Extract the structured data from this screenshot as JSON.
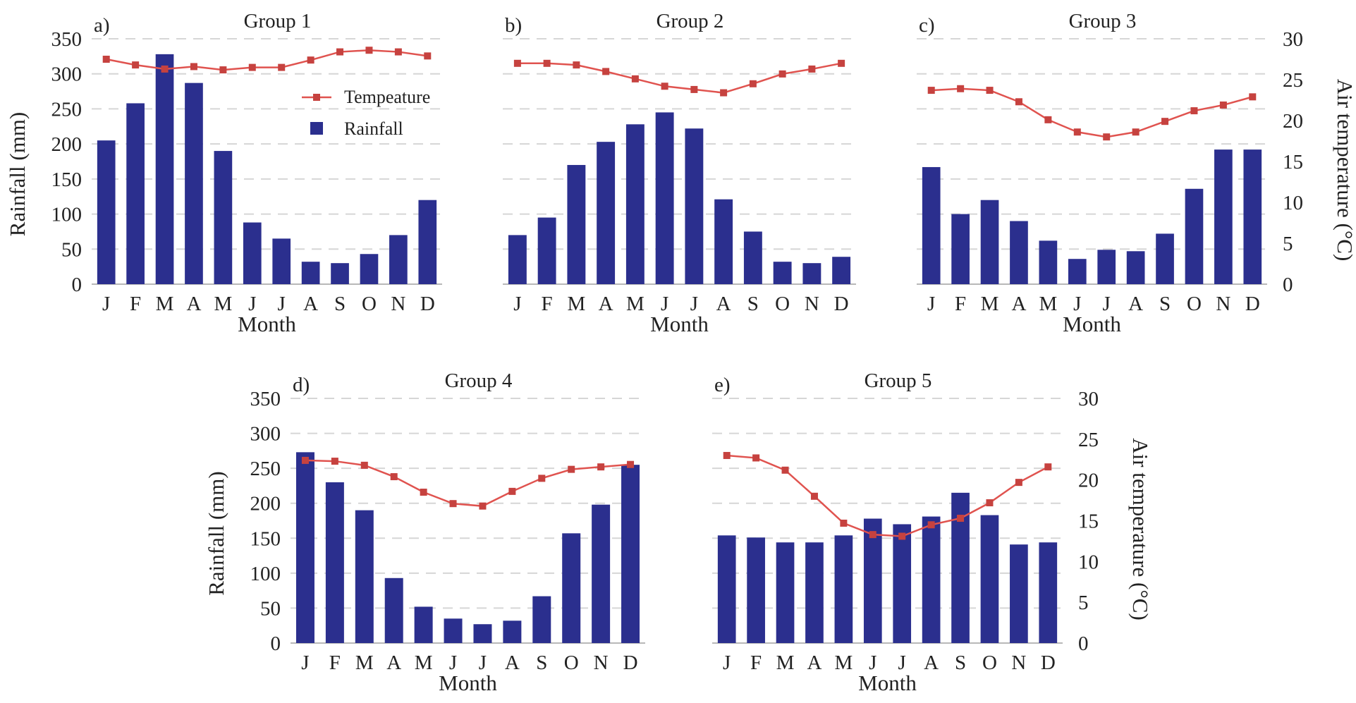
{
  "figure": {
    "legend": {
      "temperature_label": "Tempeature",
      "rainfall_label": "Rainfall"
    }
  },
  "colors": {
    "rainfall_bar": "#2b2f8e",
    "temperature_line": "#e0534f",
    "temperature_marker": "#c6423f",
    "grid": "#d6d6d6"
  },
  "chart_data": [
    {
      "type": "bar",
      "panel_label": "a)",
      "title": "Group 1",
      "categories": [
        "J",
        "F",
        "M",
        "A",
        "M",
        "J",
        "J",
        "A",
        "S",
        "O",
        "N",
        "D"
      ],
      "xlabel": "Month",
      "ylabel": "Rainfall (mm)",
      "ylim": [
        0,
        350
      ],
      "yticks": [
        "0",
        "50",
        "100",
        "150",
        "200",
        "250",
        "300",
        "350"
      ],
      "y2label": "",
      "y2lim": [
        0,
        30
      ],
      "y2ticks": [],
      "grid": true,
      "legend_position": "top-right",
      "series": [
        {
          "name": "Rainfall",
          "type": "bar",
          "axis": "left",
          "values": [
            205,
            258,
            328,
            287,
            190,
            88,
            65,
            32,
            30,
            43,
            70,
            120
          ]
        },
        {
          "name": "Tempeature",
          "type": "line",
          "axis": "right",
          "values": [
            27.5,
            26.8,
            26.3,
            26.6,
            26.2,
            26.5,
            26.5,
            27.4,
            28.4,
            28.6,
            28.4,
            27.9
          ]
        }
      ]
    },
    {
      "type": "bar",
      "panel_label": "b)",
      "title": "Group 2",
      "categories": [
        "J",
        "F",
        "M",
        "A",
        "M",
        "J",
        "J",
        "A",
        "S",
        "O",
        "N",
        "D"
      ],
      "xlabel": "Month",
      "ylabel": "",
      "ylim": [
        0,
        350
      ],
      "yticks": [],
      "y2label": "",
      "y2lim": [
        0,
        30
      ],
      "y2ticks": [],
      "grid": true,
      "series": [
        {
          "name": "Rainfall",
          "type": "bar",
          "axis": "left",
          "values": [
            70,
            95,
            170,
            203,
            228,
            245,
            222,
            121,
            75,
            32,
            30,
            39
          ]
        },
        {
          "name": "Tempeature",
          "type": "line",
          "axis": "right",
          "values": [
            27.0,
            27.0,
            26.8,
            26.0,
            25.1,
            24.2,
            23.8,
            23.4,
            24.5,
            25.7,
            26.3,
            27.0
          ]
        }
      ]
    },
    {
      "type": "bar",
      "panel_label": "c)",
      "title": "Group 3",
      "categories": [
        "J",
        "F",
        "M",
        "A",
        "M",
        "J",
        "J",
        "A",
        "S",
        "O",
        "N",
        "D"
      ],
      "xlabel": "Month",
      "ylabel": "",
      "ylim": [
        0,
        350
      ],
      "yticks": [],
      "y2label": "Air temperature (°C)",
      "y2lim": [
        0,
        30
      ],
      "y2ticks": [
        "0",
        "5",
        "10",
        "15",
        "20",
        "25",
        "30"
      ],
      "grid": true,
      "series": [
        {
          "name": "Rainfall",
          "type": "bar",
          "axis": "left",
          "values": [
            167,
            100,
            120,
            90,
            62,
            36,
            49,
            47,
            72,
            136,
            192,
            192
          ]
        },
        {
          "name": "Tempeature",
          "type": "line",
          "axis": "right",
          "values": [
            23.7,
            23.9,
            23.7,
            22.3,
            20.1,
            18.6,
            18.0,
            18.6,
            19.9,
            21.2,
            21.9,
            22.9
          ]
        }
      ]
    },
    {
      "type": "bar",
      "panel_label": "d)",
      "title": "Group 4",
      "categories": [
        "J",
        "F",
        "M",
        "A",
        "M",
        "J",
        "J",
        "A",
        "S",
        "O",
        "N",
        "D"
      ],
      "xlabel": "Month",
      "ylabel": "Rainfall (mm)",
      "ylim": [
        0,
        350
      ],
      "yticks": [
        "0",
        "50",
        "100",
        "150",
        "200",
        "250",
        "300",
        "350"
      ],
      "y2label": "",
      "y2lim": [
        0,
        30
      ],
      "y2ticks": [],
      "grid": true,
      "series": [
        {
          "name": "Rainfall",
          "type": "bar",
          "axis": "left",
          "values": [
            273,
            230,
            190,
            93,
            52,
            35,
            27,
            32,
            67,
            157,
            198,
            255
          ]
        },
        {
          "name": "Tempeature",
          "type": "line",
          "axis": "right",
          "values": [
            22.4,
            22.3,
            21.8,
            20.4,
            18.5,
            17.1,
            16.8,
            18.6,
            20.2,
            21.3,
            21.6,
            21.9
          ]
        }
      ]
    },
    {
      "type": "bar",
      "panel_label": "e)",
      "title": "Group 5",
      "categories": [
        "J",
        "F",
        "M",
        "A",
        "M",
        "J",
        "J",
        "A",
        "S",
        "O",
        "N",
        "D"
      ],
      "xlabel": "Month",
      "ylabel": "",
      "ylim": [
        0,
        350
      ],
      "yticks": [],
      "y2label": "Air temperature (°C)",
      "y2lim": [
        0,
        30
      ],
      "y2ticks": [
        "0",
        "5",
        "10",
        "15",
        "20",
        "25",
        "30"
      ],
      "grid": true,
      "series": [
        {
          "name": "Rainfall",
          "type": "bar",
          "axis": "left",
          "values": [
            154,
            151,
            144,
            144,
            154,
            178,
            170,
            181,
            215,
            183,
            141,
            144
          ]
        },
        {
          "name": "Tempeature",
          "type": "line",
          "axis": "right",
          "values": [
            23.0,
            22.7,
            21.2,
            18.0,
            14.7,
            13.3,
            13.1,
            14.5,
            15.3,
            17.2,
            19.7,
            21.6
          ]
        }
      ]
    }
  ]
}
